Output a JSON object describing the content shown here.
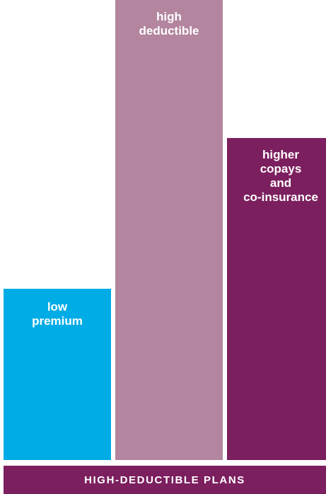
{
  "chart_data": {
    "type": "bar",
    "title": "HIGH-DEDUCTIBLE PLANS",
    "categories": [
      "low\npremium",
      "high\ndeductible",
      "higher\ncopays\nand\nco-insurance"
    ],
    "values": [
      238,
      640,
      448
    ],
    "colors": [
      "#00ace6",
      "#b3859f",
      "#7c1f5f"
    ],
    "ylim": [
      0,
      640
    ]
  },
  "footer": {
    "title": "HIGH-DEDUCTIBLE PLANS",
    "color": "#7c1f5f"
  }
}
